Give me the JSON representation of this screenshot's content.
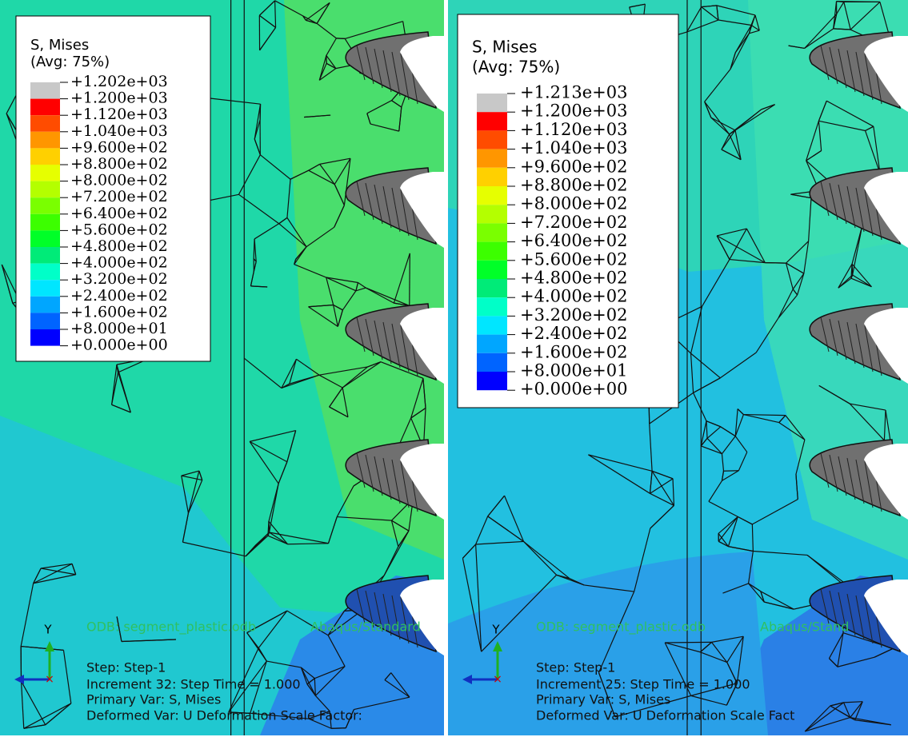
{
  "panels": [
    {
      "legend": {
        "title": "S, Mises",
        "subtitle": "(Avg: 75%)",
        "labels": [
          "+1.202e+03",
          "+1.200e+03",
          "+1.120e+03",
          "+1.040e+03",
          "+9.600e+02",
          "+8.800e+02",
          "+8.000e+02",
          "+7.200e+02",
          "+6.400e+02",
          "+5.600e+02",
          "+4.800e+02",
          "+4.000e+02",
          "+3.200e+02",
          "+2.400e+02",
          "+1.600e+02",
          "+8.000e+01",
          "+0.000e+00"
        ]
      },
      "info": {
        "odb": "ODB: segment_plastic.odb",
        "solver": "Abaqus/Standard",
        "step": "Step: Step-1",
        "increment": "Increment    32: Step Time =    1.000",
        "primary": "Primary Var: S, Mises",
        "deformed": "Deformed Var: U   Deformation Scale Factor:"
      },
      "triad": {
        "y": "Y"
      }
    },
    {
      "legend": {
        "title": "S, Mises",
        "subtitle": "(Avg: 75%)",
        "labels": [
          "+1.213e+03",
          "+1.200e+03",
          "+1.120e+03",
          "+1.040e+03",
          "+9.600e+02",
          "+8.800e+02",
          "+8.000e+02",
          "+7.200e+02",
          "+6.400e+02",
          "+5.600e+02",
          "+4.800e+02",
          "+4.000e+02",
          "+3.200e+02",
          "+2.400e+02",
          "+1.600e+02",
          "+8.000e+01",
          "+0.000e+00"
        ]
      },
      "info": {
        "odb": "ODB: segment_plastic.odb",
        "solver": "Abaqus/Stand",
        "step": "Step: Step-1",
        "increment": "Increment    25: Step Time =    1.000",
        "primary": "Primary Var: S, Mises",
        "deformed": "Deformed Var: U   Deformation Scale Fact"
      },
      "triad": {
        "y": "Y"
      }
    }
  ]
}
